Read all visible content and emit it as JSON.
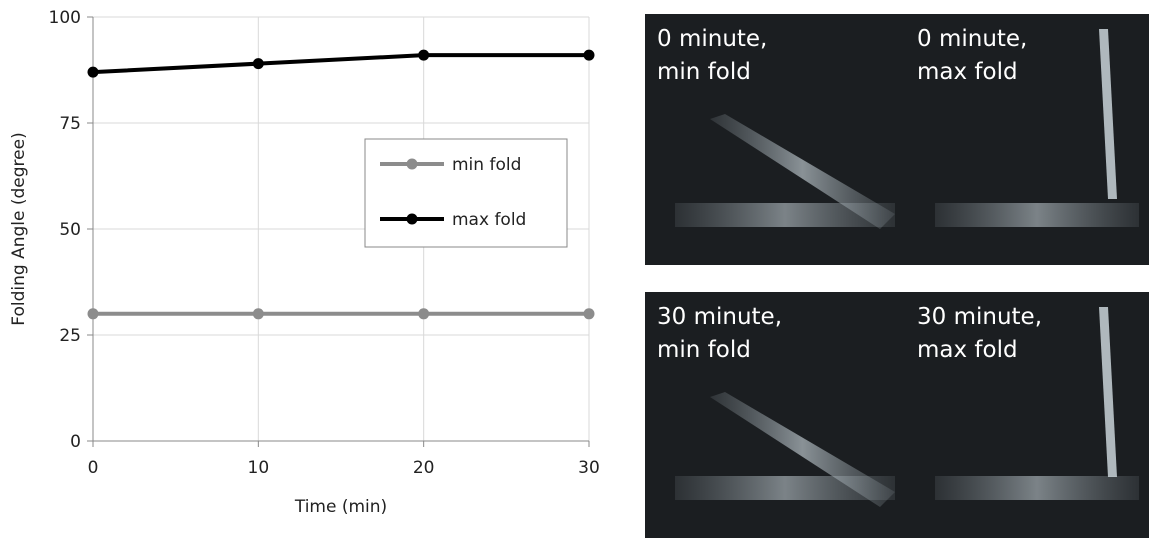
{
  "chart_data": {
    "type": "line",
    "x": [
      0,
      10,
      20,
      30
    ],
    "series": [
      {
        "name": "min fold",
        "color": "#8c8c8c",
        "values": [
          30,
          30,
          30,
          30
        ]
      },
      {
        "name": "max fold",
        "color": "#000000",
        "values": [
          87,
          89,
          91,
          91
        ]
      }
    ],
    "xlim": [
      0,
      30
    ],
    "xticks": [
      0,
      10,
      20,
      30
    ],
    "ylim": [
      0,
      100
    ],
    "yticks": [
      0,
      25,
      50,
      75,
      100
    ],
    "xlabel": "Time (min)",
    "ylabel": "Folding Angle (degree)",
    "grid": true
  },
  "images": [
    {
      "label": [
        "0 minute,",
        "min fold"
      ]
    },
    {
      "label": [
        "0 minute,",
        "max fold"
      ]
    },
    {
      "label": [
        "30 minute,",
        "min fold"
      ]
    },
    {
      "label": [
        "30 minute,",
        "max fold"
      ]
    }
  ]
}
